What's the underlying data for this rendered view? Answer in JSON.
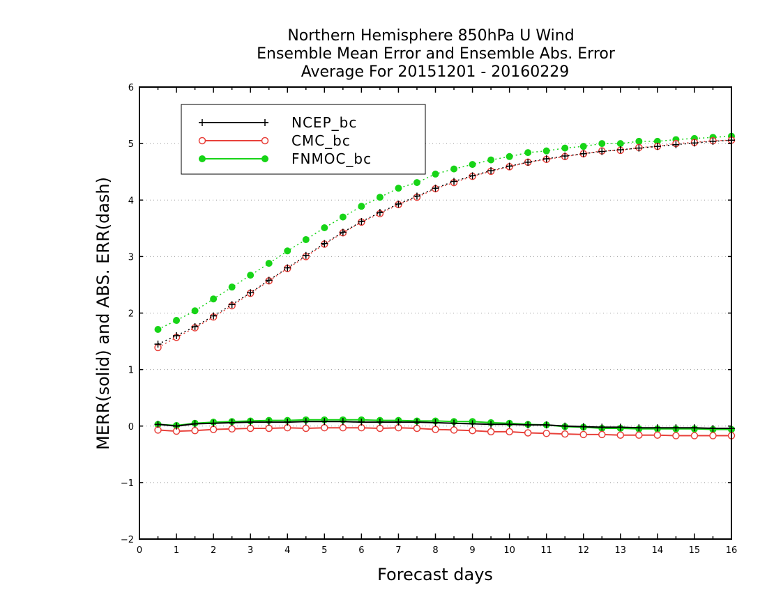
{
  "chart_data": {
    "type": "line",
    "title": [
      "Northern Hemisphere 850hPa U Wind",
      "Ensemble Mean Error and Ensemble Abs. Error",
      "Average For 20151201 - 20160229"
    ],
    "xlabel": "Forecast days",
    "ylabel": "MERR(solid) and ABS. ERR(dash)",
    "xlim": [
      0,
      16
    ],
    "ylim": [
      -2,
      6
    ],
    "xticks": [
      "0",
      "1",
      "2",
      "3",
      "4",
      "5",
      "6",
      "7",
      "8",
      "9",
      "10",
      "11",
      "12",
      "13",
      "14",
      "15",
      "16"
    ],
    "yticks": [
      "−2",
      "−1",
      "0",
      "1",
      "2",
      "3",
      "4",
      "5",
      "6"
    ],
    "grid": "horizontal dotted",
    "legend_position": "top-left",
    "x": [
      0.5,
      1.0,
      1.5,
      2.0,
      2.5,
      3.0,
      3.5,
      4.0,
      4.5,
      5.0,
      5.5,
      6.0,
      6.5,
      7.0,
      7.5,
      8.0,
      8.5,
      9.0,
      9.5,
      10.0,
      10.5,
      11.0,
      11.5,
      12.0,
      12.5,
      13.0,
      13.5,
      14.0,
      14.5,
      15.0,
      15.5,
      16.0
    ],
    "series": [
      {
        "name": "NCEP_bc",
        "color": "#000000",
        "marker": "plus",
        "merr": [
          0.03,
          0.0,
          0.04,
          0.05,
          0.06,
          0.07,
          0.07,
          0.07,
          0.08,
          0.08,
          0.08,
          0.07,
          0.07,
          0.07,
          0.07,
          0.06,
          0.05,
          0.04,
          0.03,
          0.03,
          0.02,
          0.02,
          0.0,
          -0.01,
          -0.02,
          -0.02,
          -0.03,
          -0.03,
          -0.03,
          -0.03,
          -0.04,
          -0.04
        ],
        "abs_err": [
          1.45,
          1.6,
          1.76,
          1.95,
          2.15,
          2.36,
          2.58,
          2.8,
          3.02,
          3.23,
          3.43,
          3.62,
          3.78,
          3.93,
          4.07,
          4.21,
          4.33,
          4.43,
          4.52,
          4.6,
          4.67,
          4.73,
          4.78,
          4.82,
          4.86,
          4.89,
          4.92,
          4.95,
          4.98,
          5.01,
          5.04,
          5.06
        ]
      },
      {
        "name": "CMC_bc",
        "color": "#e8403a",
        "marker": "open-circle",
        "merr": [
          -0.07,
          -0.09,
          -0.08,
          -0.06,
          -0.05,
          -0.04,
          -0.04,
          -0.03,
          -0.04,
          -0.03,
          -0.03,
          -0.03,
          -0.04,
          -0.03,
          -0.04,
          -0.06,
          -0.07,
          -0.08,
          -0.1,
          -0.1,
          -0.12,
          -0.13,
          -0.14,
          -0.15,
          -0.15,
          -0.16,
          -0.16,
          -0.16,
          -0.17,
          -0.17,
          -0.17,
          -0.17
        ],
        "abs_err": [
          1.39,
          1.57,
          1.74,
          1.93,
          2.13,
          2.35,
          2.57,
          2.79,
          3.0,
          3.22,
          3.42,
          3.61,
          3.76,
          3.92,
          4.05,
          4.2,
          4.31,
          4.42,
          4.51,
          4.59,
          4.67,
          4.72,
          4.77,
          4.82,
          4.87,
          4.88,
          4.93,
          4.95,
          5.0,
          5.02,
          5.05,
          5.06
        ]
      },
      {
        "name": "FNMOC_bc",
        "color": "#17d417",
        "marker": "filled-circle",
        "merr": [
          0.03,
          0.01,
          0.05,
          0.07,
          0.08,
          0.09,
          0.1,
          0.1,
          0.11,
          0.11,
          0.11,
          0.11,
          0.1,
          0.1,
          0.09,
          0.09,
          0.08,
          0.08,
          0.06,
          0.05,
          0.03,
          0.02,
          -0.01,
          -0.02,
          -0.04,
          -0.04,
          -0.05,
          -0.05,
          -0.05,
          -0.05,
          -0.06,
          -0.06
        ],
        "abs_err": [
          1.71,
          1.87,
          2.04,
          2.25,
          2.46,
          2.67,
          2.88,
          3.1,
          3.3,
          3.51,
          3.7,
          3.89,
          4.05,
          4.21,
          4.31,
          4.46,
          4.55,
          4.63,
          4.71,
          4.77,
          4.84,
          4.87,
          4.92,
          4.95,
          5.0,
          5.0,
          5.04,
          5.04,
          5.07,
          5.09,
          5.11,
          5.13
        ]
      }
    ]
  }
}
